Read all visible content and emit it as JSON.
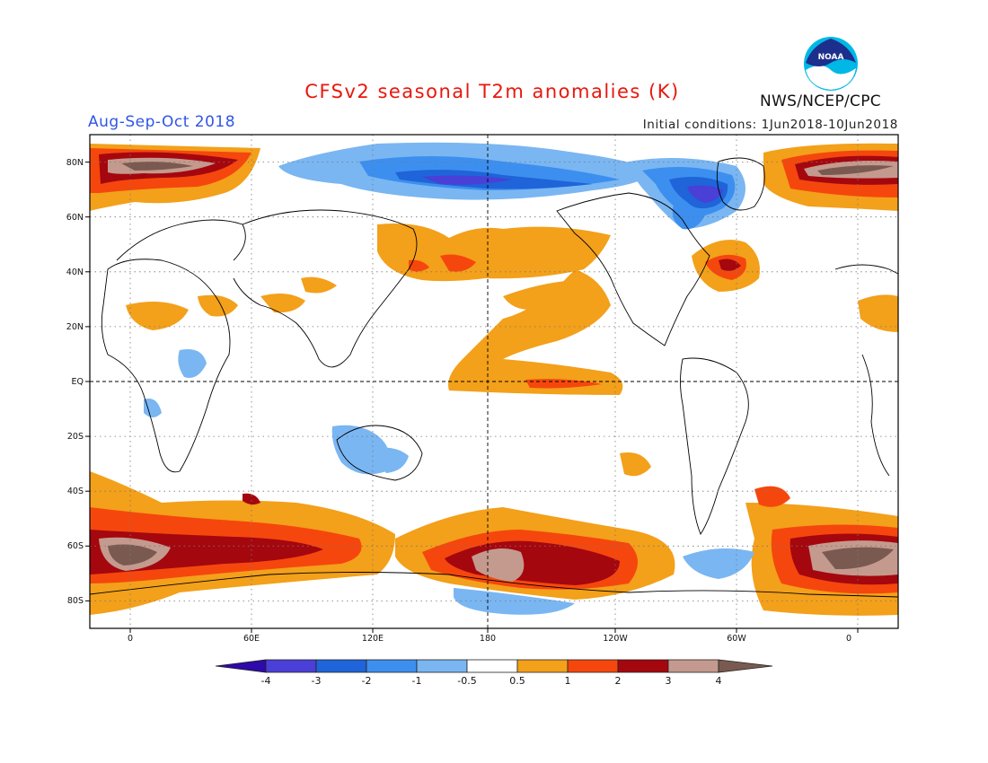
{
  "header": {
    "title": "CFSv2 seasonal T2m anomalies (K)",
    "season": "Aug-Sep-Oct 2018",
    "initial_conditions": "Initial conditions: 1Jun2018-10Jun2018",
    "agency": "NWS/NCEP/CPC",
    "logo_text": "NOAA"
  },
  "map": {
    "lat_ticks": [
      "80N",
      "60N",
      "40N",
      "20N",
      "EQ",
      "20S",
      "40S",
      "60S",
      "80S"
    ],
    "lon_ticks": [
      "0",
      "60E",
      "120E",
      "180",
      "120W",
      "60W",
      "0"
    ],
    "lat_range": [
      -90,
      90
    ],
    "lon_range": [
      -20,
      380
    ],
    "grid": "dotted",
    "reference_lines": [
      "equator",
      "dateline"
    ]
  },
  "colorbar": {
    "labels": [
      "-4",
      "-3",
      "-2",
      "-1",
      "-0.5",
      "0.5",
      "1",
      "2",
      "3",
      "4"
    ],
    "colors": [
      "#2e0aa8",
      "#4a3fd6",
      "#1f64d8",
      "#3c8fef",
      "#7ab6f2",
      "#ffffff",
      "#f3a01a",
      "#f5470d",
      "#a5070f",
      "#c49a8e",
      "#7a5a50"
    ]
  }
}
